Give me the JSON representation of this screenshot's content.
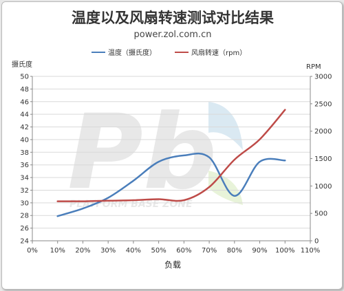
{
  "chart_data": {
    "type": "line",
    "title": "温度以及风扇转速测试对比结果",
    "subtitle": "power.zol.com.cn",
    "xlabel": "负载",
    "ylabel_left": "摄氏度",
    "ylabel_right": "RPM",
    "x_ticks": [
      "0%",
      "10%",
      "20%",
      "30%",
      "40%",
      "50%",
      "60%",
      "70%",
      "80%",
      "90%",
      "100%",
      "110%"
    ],
    "xlim": [
      0,
      110
    ],
    "ylim_left": [
      24,
      50
    ],
    "yticks_left": [
      "24",
      "26",
      "28",
      "30",
      "32",
      "34",
      "36",
      "38",
      "40",
      "42",
      "44",
      "46",
      "48",
      "50"
    ],
    "ylim_right": [
      0,
      3000
    ],
    "yticks_right": [
      "0",
      "500",
      "1000",
      "1500",
      "2000",
      "2500",
      "3000"
    ],
    "legend_position": "top",
    "grid": "horizontal",
    "series": [
      {
        "name": "温度（摄氏度）",
        "axis": "left",
        "color": "#4a7ebb",
        "x": [
          10,
          20,
          30,
          40,
          50,
          60,
          70,
          80,
          90,
          100
        ],
        "values": [
          27.9,
          29.1,
          30.8,
          33.5,
          36.5,
          37.5,
          37.2,
          31.1,
          36.5,
          36.7
        ]
      },
      {
        "name": "风扇转速（rpm）",
        "axis": "right",
        "color": "#be4b48",
        "x": [
          10,
          20,
          30,
          40,
          50,
          60,
          70,
          80,
          90,
          100
        ],
        "values": [
          720,
          720,
          730,
          740,
          760,
          740,
          980,
          1480,
          1850,
          2390
        ]
      }
    ]
  },
  "watermark": {
    "mark_text": "Pb",
    "caption_text": "PLATFORM BASE ZONE"
  }
}
